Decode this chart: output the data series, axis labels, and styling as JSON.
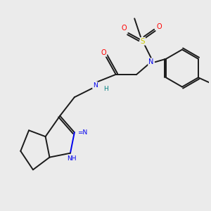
{
  "background_color": "#ebebeb",
  "bond_color": "#1a1a1a",
  "atom_colors": {
    "N": "#0000ee",
    "O": "#ff0000",
    "S": "#cccc00",
    "H": "#008080",
    "C": "#1a1a1a"
  },
  "lw": 1.4
}
